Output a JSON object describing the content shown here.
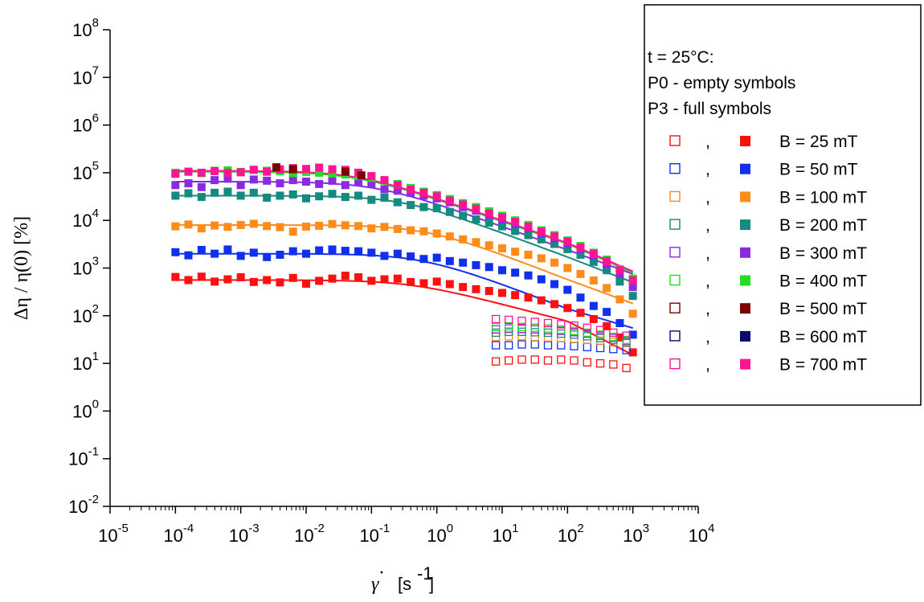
{
  "chart_data": {
    "type": "scatter",
    "xscale": "log",
    "yscale": "log",
    "xlim": [
      1e-05,
      10000
    ],
    "ylim": [
      0.01,
      100000000
    ],
    "x_tick_exponents": [
      -5,
      -4,
      -3,
      -2,
      -1,
      0,
      1,
      2,
      3,
      4
    ],
    "y_tick_exponents": [
      -2,
      -1,
      0,
      1,
      2,
      3,
      4,
      5,
      6,
      7,
      8
    ],
    "grid": false,
    "xlabel": {
      "main": "γ",
      "dot": "·",
      "unit": "[s",
      "unit_exp": "-1",
      "unit_close": "]"
    },
    "ylabel": "Δη / η(0)  [%]",
    "legend": {
      "position": "right",
      "header": [
        "t = 25°C:",
        "P0 - empty symbols",
        "P3 - full symbols"
      ],
      "separator": ",",
      "entries": [
        {
          "label": "B = 25 mT",
          "color": "#ff1010"
        },
        {
          "label": "B = 50 mT",
          "color": "#1030ee"
        },
        {
          "label": "B = 100 mT",
          "color": "#ff8c1a"
        },
        {
          "label": "B = 200 mT",
          "color": "#158a80"
        },
        {
          "label": "B = 300 mT",
          "color": "#8a2be2"
        },
        {
          "label": "B = 400 mT",
          "color": "#22dd22"
        },
        {
          "label": "B = 500 mT",
          "color": "#7a0000"
        },
        {
          "label": "B = 600 mT",
          "color": "#0a0a6e"
        },
        {
          "label": "B = 700 mT",
          "color": "#ff1493"
        }
      ]
    },
    "p3_shear_rates": [
      0.0001,
      0.000158,
      0.000251,
      0.000398,
      0.000631,
      0.001,
      0.00158,
      0.00251,
      0.00398,
      0.00631,
      0.01,
      0.0158,
      0.0251,
      0.0398,
      0.0631,
      0.1,
      0.158,
      0.251,
      0.398,
      0.631,
      1,
      1.58,
      2.51,
      3.98,
      6.31,
      10,
      15.8,
      25.1,
      39.8,
      63.1,
      100,
      158,
      251,
      398,
      631,
      1000
    ],
    "p0_shear_rates": [
      8,
      12.6,
      20,
      31.7,
      50.2,
      79.6,
      126,
      200,
      317,
      502,
      796
    ],
    "series": [
      {
        "name": "B = 25 mT",
        "symbol": "filled",
        "values": [
          650,
          560,
          660,
          520,
          580,
          640,
          510,
          560,
          500,
          620,
          470,
          540,
          600,
          690,
          640,
          540,
          580,
          600,
          510,
          480,
          520,
          460,
          400,
          360,
          330,
          300,
          270,
          240,
          210,
          175,
          145,
          115,
          85,
          60,
          35,
          17
        ]
      },
      {
        "name": "B = 50 mT",
        "symbol": "filled",
        "values": [
          2150,
          1850,
          2400,
          2000,
          2450,
          1800,
          2100,
          1700,
          1900,
          2250,
          2000,
          2350,
          2450,
          2300,
          2250,
          2100,
          1800,
          2000,
          1750,
          1550,
          1650,
          1400,
          1300,
          1150,
          1050,
          900,
          800,
          700,
          580,
          460,
          350,
          240,
          160,
          120,
          70,
          40
        ]
      },
      {
        "name": "B = 100 mT",
        "symbol": "filled",
        "values": [
          7500,
          8200,
          6800,
          7800,
          7300,
          8000,
          8500,
          7600,
          7200,
          5800,
          7400,
          7700,
          8400,
          7900,
          7600,
          6800,
          7300,
          6600,
          6200,
          5900,
          5300,
          4600,
          4000,
          3500,
          3000,
          2600,
          2200,
          1900,
          1600,
          1300,
          1000,
          750,
          550,
          380,
          220,
          110
        ]
      },
      {
        "name": "B = 200 mT",
        "symbol": "filled",
        "values": [
          33000,
          37000,
          31000,
          38000,
          40000,
          33000,
          38000,
          30000,
          33000,
          35000,
          29000,
          32000,
          36000,
          31000,
          33000,
          27000,
          30000,
          24000,
          21000,
          19000,
          18000,
          15000,
          12500,
          10500,
          9000,
          7500,
          6000,
          4900,
          4000,
          3200,
          2500,
          1900,
          1350,
          900,
          520,
          260
        ]
      },
      {
        "name": "B = 300 mT",
        "symbol": "filled",
        "values": [
          55000,
          60000,
          50000,
          70000,
          75000,
          55000,
          72000,
          68000,
          60000,
          70000,
          65000,
          58000,
          68000,
          55000,
          65000,
          58000,
          45000,
          42000,
          38000,
          33000,
          29000,
          24000,
          19000,
          16000,
          13000,
          10500,
          8500,
          6800,
          5300,
          4200,
          3300,
          2500,
          1800,
          1200,
          750,
          400
        ]
      },
      {
        "name": "B = 400 mT",
        "symbol": "filled",
        "values": [
          100000,
          105000,
          98000,
          110000,
          112000,
          104000,
          115000,
          110000,
          108000,
          98000,
          104000,
          100000,
          96000,
          92000,
          85000,
          78000,
          68000,
          58000,
          48000,
          40000,
          34000,
          28000,
          23000,
          19000,
          15500,
          12500,
          10000,
          8000,
          6200,
          4900,
          3800,
          2900,
          2100,
          1500,
          950,
          600
        ]
      },
      {
        "name": "B = 500 mT",
        "symbol": "filled",
        "values": [],
        "note": "symbols mostly hidden behind 700 mT"
      },
      {
        "name": "B = 600 mT",
        "symbol": "filled",
        "values": []
      },
      {
        "name": "B = 700 mT",
        "symbol": "filled",
        "values": [
          95000,
          105000,
          100000,
          108000,
          100000,
          102000,
          115000,
          105000,
          118000,
          125000,
          120000,
          128000,
          118000,
          115000,
          100000,
          85000,
          70000,
          55000,
          44000,
          38000,
          32000,
          26000,
          21500,
          17500,
          14000,
          11500,
          9300,
          7400,
          5800,
          4600,
          3600,
          2700,
          2000,
          1400,
          900,
          550
        ]
      },
      {
        "name": "B = 500 mT",
        "symbol": "filled-dark",
        "x": [
          0.0035,
          0.0063,
          0.04,
          0.07
        ],
        "values": [
          130000,
          118000,
          105000,
          88000
        ]
      },
      {
        "name": "B = 25 mT",
        "symbol": "empty",
        "values": [
          11,
          11.5,
          12,
          12,
          11.5,
          12,
          11.5,
          10.5,
          10,
          9.5,
          8
        ]
      },
      {
        "name": "B = 50 mT",
        "symbol": "empty",
        "values": [
          24,
          24,
          25,
          25,
          24,
          24,
          23,
          22,
          21,
          20,
          19
        ]
      },
      {
        "name": "B = 100 mT",
        "symbol": "empty",
        "values": [
          36,
          37,
          37,
          36,
          35,
          34,
          33,
          31,
          30,
          28,
          27
        ]
      },
      {
        "name": "B = 200 mT",
        "symbol": "empty",
        "values": [
          44,
          46,
          46,
          45,
          44,
          42,
          40,
          37,
          34,
          31,
          28
        ]
      },
      {
        "name": "B = 300 mT",
        "symbol": "empty",
        "values": [
          52,
          54,
          53,
          52,
          50,
          48,
          45,
          42,
          38,
          34,
          30
        ]
      },
      {
        "name": "B = 400 mT",
        "symbol": "empty",
        "values": [
          58,
          60,
          58,
          56,
          54,
          51,
          48,
          44,
          40,
          36,
          31
        ]
      },
      {
        "name": "B = 700 mT",
        "symbol": "empty",
        "values": [
          85,
          82,
          78,
          74,
          70,
          66,
          62,
          56,
          50,
          44,
          38
        ]
      }
    ],
    "fit_lines": [
      {
        "name": "B = 25 mT",
        "y0": 560,
        "xc": 0.4,
        "slope": 0.36,
        "tail_x": 1000,
        "tail_y": 15
      },
      {
        "name": "B = 50 mT",
        "y0": 2000,
        "xc": 0.6,
        "slope": 0.52,
        "tail_x": 1000,
        "tail_y": 55
      },
      {
        "name": "B = 100 mT",
        "y0": 8000,
        "xc": 0.7,
        "slope": 0.53,
        "tail_x": 1000,
        "tail_y": 180
      },
      {
        "name": "B = 200 mT",
        "y0": 33000,
        "xc": 0.3,
        "slope": 0.51,
        "tail_x": 1000,
        "tail_y": 500
      },
      {
        "name": "B = 300 mT",
        "y0": 65000,
        "xc": 0.12,
        "slope": 0.49,
        "tail_x": 1000,
        "tail_y": 750
      },
      {
        "name": "B = 400 mT",
        "y0": 105000,
        "xc": 0.06,
        "slope": 0.47,
        "tail_x": 1000,
        "tail_y": 800
      },
      {
        "name": "B = 700 mT",
        "y0": 110000,
        "xc": 0.06,
        "slope": 0.47,
        "tail_x": 1000,
        "tail_y": 850
      }
    ]
  }
}
